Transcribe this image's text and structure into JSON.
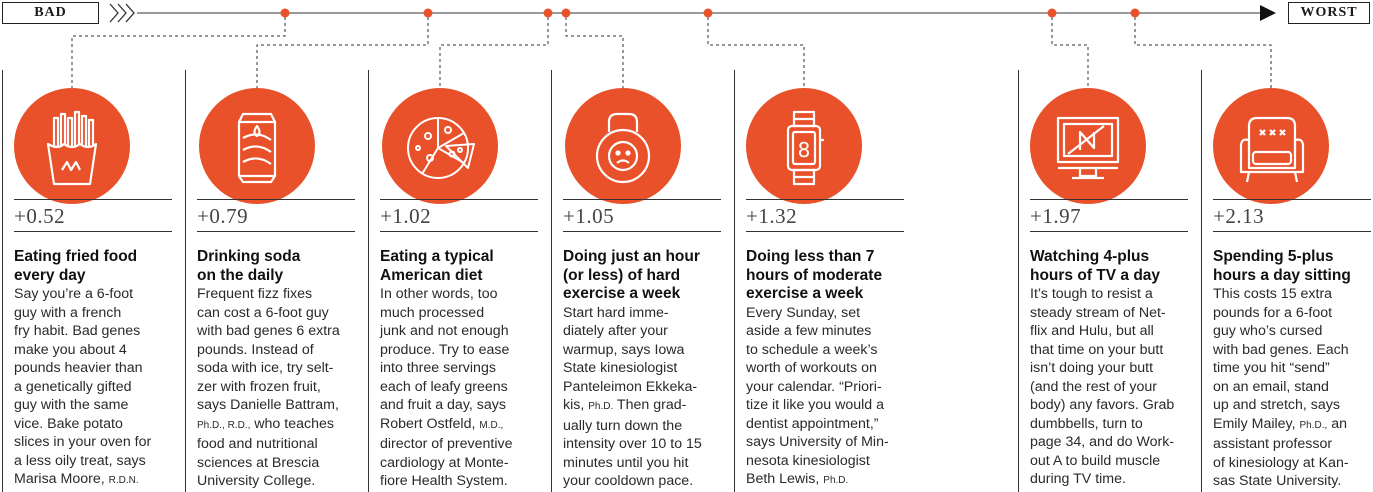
{
  "scale": {
    "start_label": "BAD",
    "end_label": "WORST",
    "accent_color": "#e8512a",
    "arrows_icon": "triple-chevron-right-icon",
    "end_icon": "triangle-right-icon"
  },
  "items": [
    {
      "score": "+0.52",
      "icon": "french-fries-icon",
      "title_lines": [
        "Eating fried food",
        "every day"
      ],
      "body_lines": [
        "Say you’re a 6-foot",
        "guy with a french",
        "fry habit. Bad genes",
        "make you about 4",
        "pounds heavier than",
        "a genetically gifted",
        "guy with the same",
        "vice. Bake potato",
        "slices in your oven for",
        "a less oily treat, says"
      ],
      "last_line": "Marisa Moore,",
      "credential": "R.D.N.",
      "after_credential": ""
    },
    {
      "score": "+0.79",
      "icon": "soda-can-icon",
      "title_lines": [
        "Drinking soda",
        "on the daily"
      ],
      "body_lines": [
        "Frequent fizz fixes",
        "can cost a 6-foot guy",
        "with bad genes 6 extra",
        "pounds. Instead of",
        "soda with ice, try selt-",
        "zer with frozen fruit,",
        "says Danielle Battram,"
      ],
      "last_line": "",
      "credential": "Ph.D., R.D.,",
      "after_credential": " who teaches",
      "tail_lines": [
        "food and nutritional",
        "sciences at Brescia",
        "University College."
      ]
    },
    {
      "score": "+1.02",
      "icon": "pizza-icon",
      "title_lines": [
        "Eating a typical",
        "American diet"
      ],
      "body_lines": [
        "In other words, too",
        "much processed",
        "junk and not enough",
        "produce. Try to ease",
        "into three servings",
        "each of leafy greens",
        "and fruit a day, says"
      ],
      "last_line": "Robert Ostfeld,",
      "credential": "M.D.,",
      "after_credential": "",
      "tail_lines": [
        "director of preventive",
        "cardiology at Monte-",
        "fiore Health System."
      ]
    },
    {
      "score": "+1.05",
      "icon": "kettlebell-icon",
      "title_lines": [
        "Doing just an hour",
        "(or less) of hard",
        "exercise a week"
      ],
      "body_lines": [
        "Start hard imme-",
        "diately after your",
        "warmup, says Iowa",
        "State kinesiologist",
        "Panteleimon Ekkeka-"
      ],
      "last_line": "kis,",
      "credential": "Ph.D.",
      "after_credential": " Then grad-",
      "tail_lines": [
        "ually turn down the",
        "intensity over 10 to 15",
        "minutes until you hit",
        "your cooldown pace."
      ]
    },
    {
      "score": "+1.32",
      "icon": "smartwatch-icon",
      "title_lines": [
        "Doing less than 7",
        "hours of moderate",
        "exercise a week"
      ],
      "body_lines": [
        "Every Sunday, set",
        "aside a few minutes",
        "to schedule a week’s",
        "worth of workouts on",
        "your calendar. “Priori-",
        "tize it like you would a",
        "dentist appointment,”",
        "says University of Min-",
        "nesota kinesiologist"
      ],
      "last_line": "Beth Lewis,",
      "credential": "Ph.D.",
      "after_credential": ""
    },
    {
      "score": "+1.97",
      "icon": "tv-monitor-icon",
      "title_lines": [
        "Watching 4-plus",
        "hours of TV a day"
      ],
      "body_lines": [
        "It’s tough to resist a",
        "steady stream of Net-",
        "flix and Hulu, but all",
        "that time on your butt",
        "isn’t doing your butt",
        "(and the rest of your",
        "body) any favors. Grab",
        "dumbbells, turn to",
        "page 34, and do Work-",
        "out A to build muscle",
        "during TV time."
      ],
      "last_line": "",
      "credential": "",
      "after_credential": ""
    },
    {
      "score": "+2.13",
      "icon": "armchair-icon",
      "title_lines": [
        "Spending 5-plus",
        "hours a day sitting"
      ],
      "body_lines": [
        "This costs 15 extra",
        "pounds for a 6-foot",
        "guy who’s cursed",
        "with bad genes. Each",
        "time you hit “send”",
        "on an email, stand",
        "up and stretch, says"
      ],
      "last_line": "Emily Mailey,",
      "credential": "Ph.D.,",
      "after_credential": " an",
      "tail_lines": [
        "assistant professor",
        "of kinesiology at Kan-",
        "sas State University."
      ]
    }
  ]
}
